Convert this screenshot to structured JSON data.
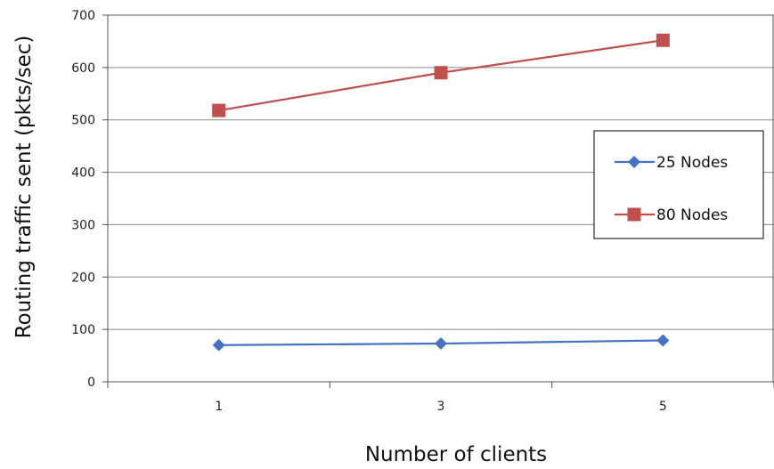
{
  "chart_data": {
    "type": "line",
    "title": "",
    "xlabel": "Number of clients",
    "ylabel": "Routing traffic sent (pkts/sec)",
    "categories": [
      "1",
      "3",
      "5"
    ],
    "ylim": [
      0,
      700
    ],
    "yticks": [
      0,
      100,
      200,
      300,
      400,
      500,
      600,
      700
    ],
    "grid": true,
    "legend_position": "right",
    "series": [
      {
        "name": "25 Nodes",
        "values": [
          70,
          73,
          79
        ],
        "color": "#4472C4",
        "marker": "diamond"
      },
      {
        "name": "80 Nodes",
        "values": [
          518,
          590,
          652
        ],
        "color": "#C0504D",
        "marker": "square"
      }
    ]
  }
}
